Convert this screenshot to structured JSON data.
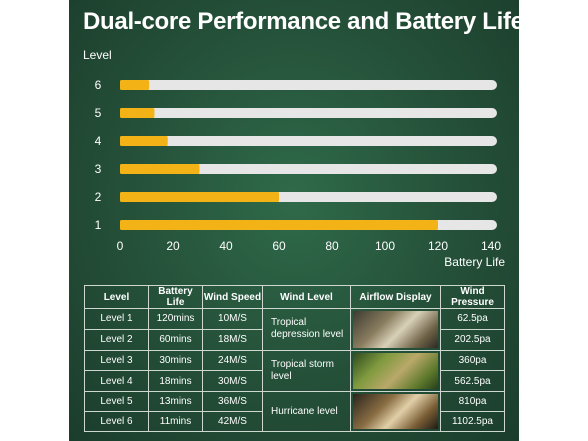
{
  "title": "Dual-core Performance and Battery Life",
  "colors": {
    "bar_fill": "#f3b316",
    "bar_track": "#e6e6e6",
    "panel_bg": "#264f3a",
    "text": "#ffffff"
  },
  "chart_data": {
    "type": "bar",
    "orientation": "horizontal",
    "ylabel": "Level",
    "xlabel": "Battery Life",
    "categories": [
      "6",
      "5",
      "4",
      "3",
      "2",
      "1"
    ],
    "values": [
      11,
      13,
      18,
      30,
      60,
      120
    ],
    "xlim": [
      0,
      140
    ],
    "xticks": [
      0,
      20,
      40,
      60,
      80,
      100,
      120,
      140
    ],
    "grid": false
  },
  "table": {
    "headers": [
      "Level",
      "Battery Life",
      "Wind Speed",
      "Wind Level",
      "Airflow Display",
      "Wind Pressure"
    ],
    "rows": [
      [
        "Level 1",
        "120mins",
        "10M/S",
        "62.5pa"
      ],
      [
        "Level 2",
        "60mins",
        "18M/S",
        "202.5pa"
      ],
      [
        "Level 3",
        "30mins",
        "24M/S",
        "360pa"
      ],
      [
        "Level 4",
        "18mins",
        "30M/S",
        "562.5pa"
      ],
      [
        "Level 5",
        "13mins",
        "36M/S",
        "810pa"
      ],
      [
        "Level 6",
        "11mins",
        "42M/S",
        "1102.5pa"
      ]
    ],
    "wind_levels": [
      "Tropical depression level",
      "Tropical storm level",
      "Hurricane level"
    ]
  }
}
